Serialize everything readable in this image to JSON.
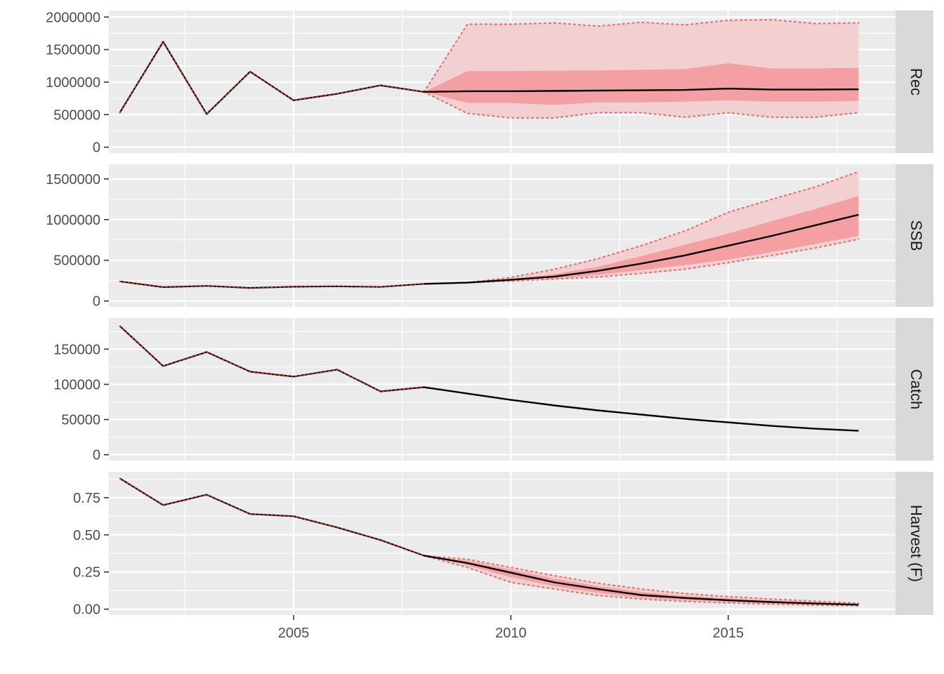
{
  "chart_data": {
    "type": "line",
    "layout": "faceted-vertical",
    "shared_x_ticks": [
      2005,
      2010,
      2015
    ],
    "colors": {
      "panel_bg": "#ebebeb",
      "grid": "#ffffff",
      "strip_bg": "#d9d9d9",
      "median_line": "#000000",
      "inner_band": "#f4a0a3",
      "outer_band": "#f2cfd0",
      "dotted": "#e8716f",
      "text": "#4d4d4d"
    },
    "panels": [
      {
        "label": "Rec",
        "ylim": [
          0,
          2000000
        ],
        "y_ticks": [
          0,
          500000,
          1000000,
          1500000,
          2000000
        ],
        "y_tick_labels": [
          "0",
          "500000",
          "1000000",
          "1500000",
          "2000000"
        ],
        "historical": {
          "x": [
            2001,
            2002,
            2003,
            2004,
            2005,
            2006,
            2007,
            2008
          ],
          "y": [
            530000,
            1620000,
            510000,
            1160000,
            720000,
            820000,
            950000,
            850000
          ]
        },
        "projection": {
          "x": [
            2008,
            2009,
            2010,
            2011,
            2012,
            2013,
            2014,
            2015,
            2016,
            2017,
            2018
          ],
          "median": [
            850000,
            860000,
            860000,
            865000,
            870000,
            875000,
            880000,
            900000,
            885000,
            885000,
            890000
          ],
          "inner_lower": [
            850000,
            680000,
            680000,
            650000,
            690000,
            690000,
            700000,
            720000,
            700000,
            700000,
            710000
          ],
          "inner_upper": [
            850000,
            1170000,
            1170000,
            1175000,
            1180000,
            1190000,
            1200000,
            1290000,
            1210000,
            1210000,
            1220000
          ],
          "outer_lower": [
            850000,
            520000,
            450000,
            450000,
            530000,
            530000,
            460000,
            530000,
            460000,
            460000,
            530000
          ],
          "outer_upper": [
            850000,
            1890000,
            1890000,
            1910000,
            1860000,
            1920000,
            1880000,
            1950000,
            1960000,
            1900000,
            1910000
          ]
        }
      },
      {
        "label": "SSB",
        "ylim": [
          0,
          1600000
        ],
        "y_ticks": [
          0,
          500000,
          1000000,
          1500000
        ],
        "y_tick_labels": [
          "0",
          "500000",
          "1000000",
          "1500000"
        ],
        "historical": {
          "x": [
            2001,
            2002,
            2003,
            2004,
            2005,
            2006,
            2007,
            2008
          ],
          "y": [
            240000,
            170000,
            185000,
            160000,
            175000,
            180000,
            172000,
            210000
          ]
        },
        "projection": {
          "x": [
            2008,
            2009,
            2010,
            2011,
            2012,
            2013,
            2014,
            2015,
            2016,
            2017,
            2018
          ],
          "median": [
            210000,
            225000,
            260000,
            300000,
            370000,
            460000,
            560000,
            680000,
            800000,
            930000,
            1060000
          ],
          "inner_lower": [
            210000,
            225000,
            250000,
            275000,
            320000,
            380000,
            440000,
            510000,
            600000,
            700000,
            800000
          ],
          "inner_upper": [
            210000,
            225000,
            270000,
            330000,
            420000,
            550000,
            690000,
            830000,
            980000,
            1130000,
            1290000
          ],
          "outer_lower": [
            210000,
            225000,
            245000,
            270000,
            295000,
            340000,
            390000,
            470000,
            560000,
            650000,
            760000
          ],
          "outer_upper": [
            210000,
            225000,
            290000,
            390000,
            520000,
            680000,
            860000,
            1090000,
            1250000,
            1400000,
            1590000
          ]
        }
      },
      {
        "label": "Catch",
        "ylim": [
          0,
          185000
        ],
        "y_ticks": [
          0,
          50000,
          100000,
          150000
        ],
        "y_tick_labels": [
          "0",
          "50000",
          "100000",
          "150000"
        ],
        "historical": {
          "x": [
            2001,
            2002,
            2003,
            2004,
            2005,
            2006,
            2007,
            2008
          ],
          "y": [
            183000,
            126000,
            146000,
            118000,
            111000,
            121000,
            90000,
            96000
          ]
        },
        "projection": {
          "x": [
            2008,
            2009,
            2010,
            2011,
            2012,
            2013,
            2014,
            2015,
            2016,
            2017,
            2018
          ],
          "median": [
            96000,
            87000,
            78000,
            70000,
            63000,
            57000,
            51000,
            46000,
            41000,
            37000,
            34000
          ],
          "inner_lower": [
            96000,
            87000,
            78000,
            70000,
            63000,
            57000,
            51000,
            46000,
            41000,
            37000,
            34000
          ],
          "inner_upper": [
            96000,
            87000,
            78000,
            70000,
            63000,
            57000,
            51000,
            46000,
            41000,
            37000,
            34000
          ],
          "outer_lower": [
            96000,
            87000,
            78000,
            70000,
            63000,
            57000,
            51000,
            46000,
            41000,
            37000,
            34000
          ],
          "outer_upper": [
            96000,
            87000,
            78000,
            70000,
            63000,
            57000,
            51000,
            46000,
            41000,
            37000,
            34000
          ]
        }
      },
      {
        "label": "Harvest (F)",
        "ylim": [
          0,
          0.88
        ],
        "y_ticks": [
          0,
          0.25,
          0.5,
          0.75
        ],
        "y_tick_labels": [
          "0.00",
          "0.25",
          "0.50",
          "0.75"
        ],
        "historical": {
          "x": [
            2001,
            2002,
            2003,
            2004,
            2005,
            2006,
            2007,
            2008
          ],
          "y": [
            0.88,
            0.7,
            0.77,
            0.64,
            0.625,
            0.55,
            0.465,
            0.36
          ]
        },
        "projection": {
          "x": [
            2008,
            2009,
            2010,
            2011,
            2012,
            2013,
            2014,
            2015,
            2016,
            2017,
            2018
          ],
          "median": [
            0.36,
            0.31,
            0.245,
            0.18,
            0.135,
            0.095,
            0.075,
            0.06,
            0.048,
            0.038,
            0.03
          ],
          "inner_lower": [
            0.36,
            0.295,
            0.215,
            0.155,
            0.11,
            0.078,
            0.06,
            0.048,
            0.038,
            0.03,
            0.024
          ],
          "inner_upper": [
            0.36,
            0.325,
            0.265,
            0.205,
            0.155,
            0.115,
            0.09,
            0.072,
            0.058,
            0.046,
            0.036
          ],
          "outer_lower": [
            0.36,
            0.28,
            0.18,
            0.135,
            0.092,
            0.068,
            0.052,
            0.042,
            0.034,
            0.027,
            0.022
          ],
          "outer_upper": [
            0.36,
            0.335,
            0.28,
            0.225,
            0.175,
            0.135,
            0.105,
            0.084,
            0.068,
            0.053,
            0.04
          ]
        }
      }
    ]
  }
}
